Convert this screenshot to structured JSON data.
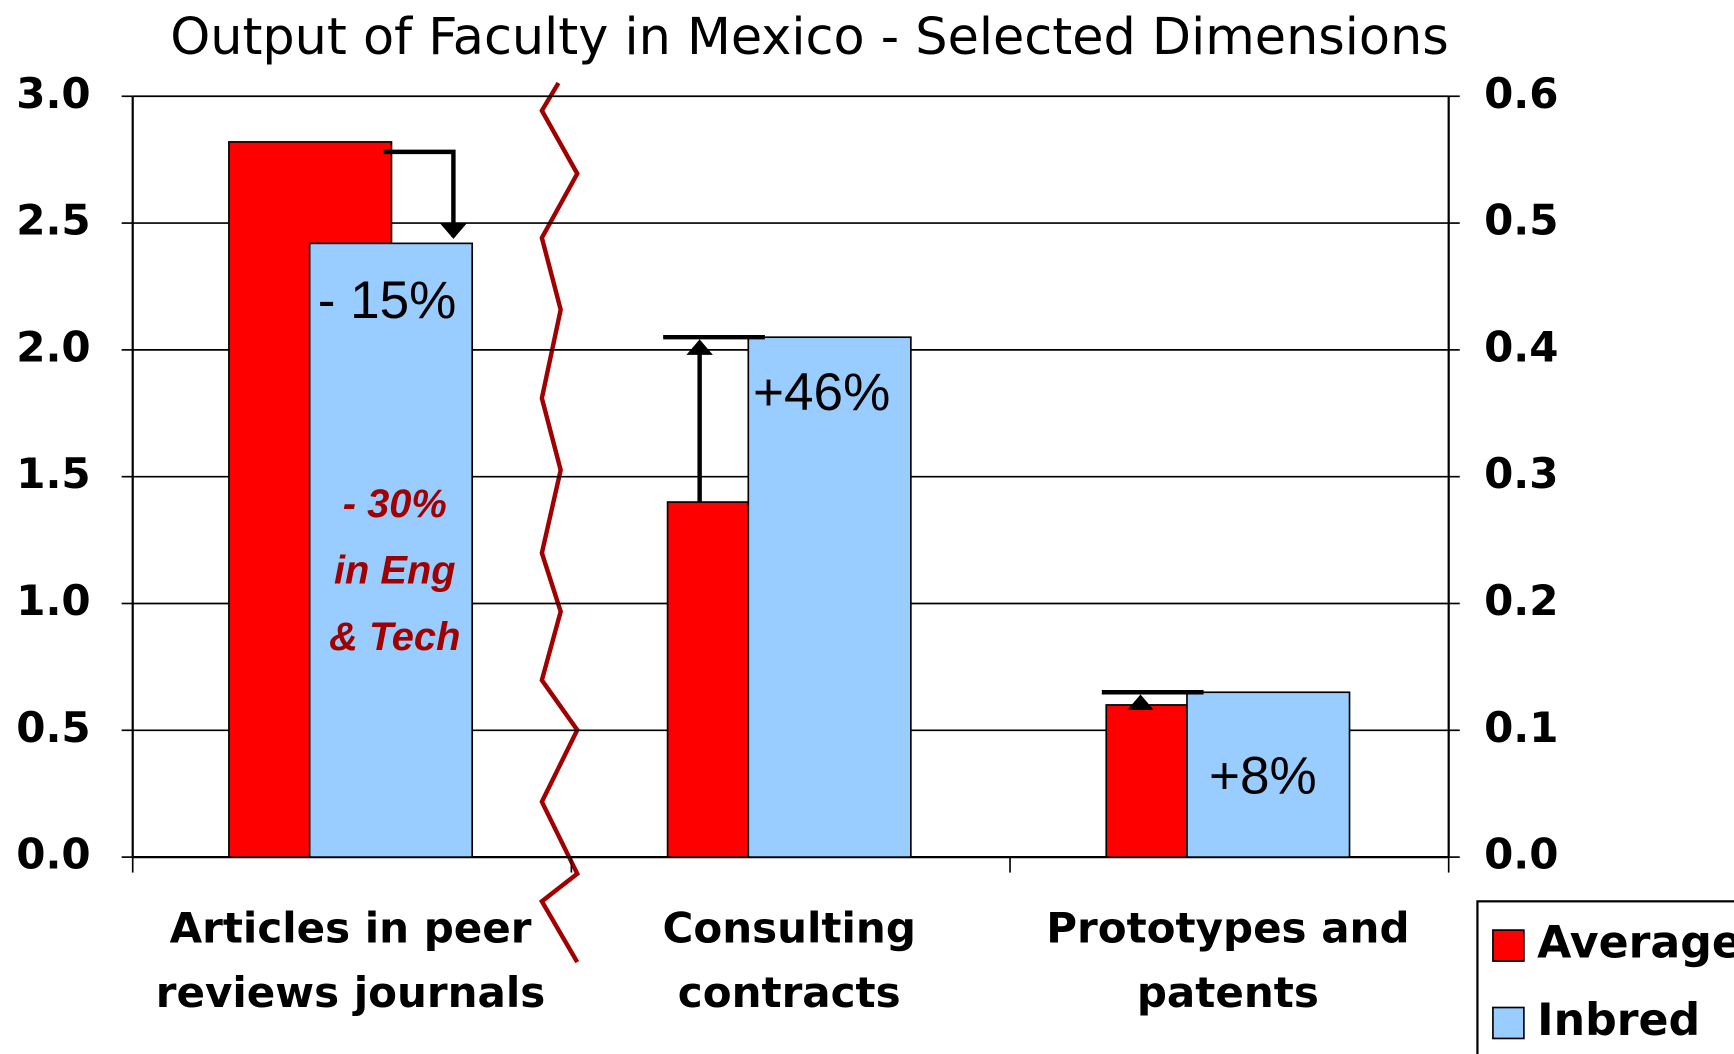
{
  "chart_data": {
    "type": "bar",
    "title": "Output of Faculty in Mexico - Selected Dimensions",
    "categories": [
      [
        "Articles in peer",
        "reviews journals"
      ],
      [
        "Consulting",
        "contracts"
      ],
      [
        "Prototypes and",
        "patents"
      ]
    ],
    "category_axes": [
      "y",
      "y2",
      "y2"
    ],
    "series": [
      {
        "name": "Average",
        "color": "#ff0000",
        "values": [
          2.82,
          0.28,
          0.12
        ]
      },
      {
        "name": "Inbred",
        "color": "#99ccff",
        "values": [
          2.42,
          0.41,
          0.13
        ]
      }
    ],
    "ylim": [
      0,
      3
    ],
    "yticks": [
      {
        "value": 0,
        "label": "0.0"
      },
      0.5,
      {
        "value": 1,
        "label": "1.0"
      },
      1.5,
      {
        "value": 2,
        "label": "2.0"
      },
      2.5,
      {
        "value": 3,
        "label": "3.0"
      }
    ],
    "y2lim": [
      0,
      0.6
    ],
    "y2ticks": [
      {
        "value": 0,
        "label": "0.0"
      },
      0.1,
      0.2,
      0.3,
      0.4,
      0.5,
      0.6
    ],
    "grid": true,
    "legend": "bottom-right",
    "annotations": [
      "- 15%",
      "+46%",
      "+8%"
    ],
    "note": [
      "- 30%",
      "in Eng",
      "& Tech"
    ]
  }
}
